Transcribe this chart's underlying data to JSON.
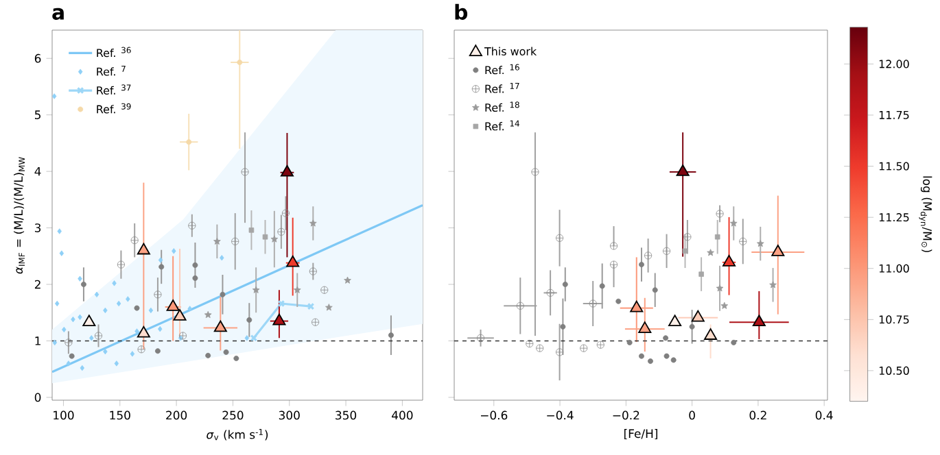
{
  "chart_data": [
    {
      "type": "scatter",
      "title": "a",
      "xlabel": "*σ*$_{v}$ (km s$^{-1}$)",
      "ylabel": "*α*$_{IMF}$ = (M/L)/(M/L)$_{MW}$",
      "xlim": [
        90,
        418
      ],
      "ylim": [
        -0.05,
        6.5
      ],
      "xticks": [
        100,
        150,
        200,
        250,
        300,
        350,
        400
      ],
      "yticks": [
        0,
        1,
        2,
        3,
        4,
        5,
        6
      ],
      "legend": "top left",
      "ref_lines": [
        {
          "axis": "y",
          "value": 1,
          "color": "#333333",
          "line_style": "dashed"
        }
      ],
      "series": [
        {
          "name": "Ref. $^{36}$",
          "type": "line",
          "color": "#7ec8f5",
          "x": [
            90,
            206,
            341,
            418
          ],
          "values": [
            0.45,
            1.49,
            2.71,
            3.4
          ],
          "lower": [
            0.25,
            0.62,
            1.06,
            1.3
          ],
          "upper": [
            1.2,
            3.15,
            6.5,
            6.5
          ]
        },
        {
          "name": "Ref. $^{7}$",
          "marker": "diamond",
          "color": "#8fd0f7",
          "x": [
            96.5,
            98.4,
            94.4,
            114.6,
            108.5,
            124.8,
            137,
            116.6,
            147,
            104.5,
            100.5,
            149,
            165,
            161,
            185.5,
            197.7,
            186,
            203.7,
            129.5,
            114.6,
            145,
            92.3,
            137,
            177.4,
            157,
            211.9,
            240.2,
            262.4,
            91.9
          ],
          "values": [
            2.94,
            2.55,
            1.66,
            2.1,
            1.38,
            1.05,
            0.81,
            0.52,
            0.6,
            0.6,
            1.2,
            1.66,
            1.17,
            0.77,
            1.21,
            2.59,
            2.43,
            1.05,
            1.82,
            1.42,
            2.02,
            0.97,
            1.54,
            1.54,
            1.74,
            1.57,
            2.47,
            1.05,
            5.33
          ]
        },
        {
          "name": "Ref. $^{37}$",
          "type": "line",
          "marker": "cross",
          "color": "#9dd7f7",
          "x": [
            268.5,
            292.8,
            319
          ],
          "values": [
            1.05,
            1.66,
            1.61
          ]
        },
        {
          "name": "Ref. $^{39}$",
          "marker": "circle",
          "color": "#f5d9a8",
          "x": [
            211,
            256
          ],
          "values": [
            4.52,
            5.93
          ],
          "errors": [
            0.5,
            [
              4.4,
              6.5
            ]
          ],
          "xerrors": [
            8,
            8
          ]
        },
        {
          "marker": "circle",
          "color": "#7f7f7f",
          "x": [
            117.9,
            107.4,
            186.7,
            216.6,
            216.6,
            240.9,
            228,
            253,
            244,
            264.5,
            390,
            165,
            183.5
          ],
          "values": [
            2.0,
            0.73,
            2.31,
            2.34,
            2.11,
            1.82,
            0.74,
            0.69,
            0.8,
            1.37,
            1.1,
            1.58,
            0.82
          ],
          "errors": [
            0.3,
            null,
            0.3,
            0.4,
            null,
            0.35,
            null,
            null,
            null,
            0.3,
            0.35,
            null,
            null
          ]
        },
        {
          "marker": "cross",
          "color": "#8a8a8a",
          "x": [
            163,
            151,
            213.8,
            252,
            292.8,
            321,
            331,
            323,
            104.5,
            183.5,
            205.7,
            169,
            131,
            296.8,
            260.7
          ],
          "values": [
            2.78,
            2.35,
            3.04,
            2.76,
            2.93,
            2.23,
            1.9,
            1.33,
            0.97,
            1.82,
            1.09,
            0.85,
            1.09,
            3.26,
            3.99
          ],
          "errors": [
            0.3,
            0.25,
            0.2,
            0.5,
            0.3,
            0.15,
            null,
            null,
            0.2,
            0.3,
            null,
            null,
            0.2,
            0.3,
            [
              3.09,
              4.69
            ]
          ]
        },
        {
          "marker": "star",
          "color": "#9a9a9a",
          "x": [
            321,
            351.5,
            335,
            270.5,
            307,
            236,
            286.7,
            228
          ],
          "values": [
            3.08,
            2.07,
            1.59,
            1.9,
            1.9,
            2.76,
            2.8,
            1.46
          ],
          "errors": [
            0.3,
            null,
            null,
            0.4,
            0.3,
            0.3,
            0.5,
            null
          ]
        },
        {
          "marker": "square",
          "color": "#a6a6a6",
          "x": [
            278.6,
            266.4
          ],
          "values": [
            2.84,
            2.96
          ],
          "errors": [
            0.3,
            0.35
          ]
        },
        {
          "marker": "triangle",
          "color": "#000000",
          "x": [
            122.7,
            171,
            171,
            197,
            203,
            239,
            291,
            303,
            298
          ],
          "values": [
            1.33,
            2.6,
            1.13,
            1.6,
            1.43,
            1.23,
            1.35,
            2.38,
            3.98
          ],
          "colors": [
            "#fff0e9",
            "#fca284",
            "#feddce",
            "#fc9879",
            "#fdccb8",
            "#fca284",
            "#ad1117",
            "#ee3a2b",
            "#7d0510"
          ],
          "errors": [
            null,
            [
              0.85,
              3.8
            ],
            null,
            [
              1.0,
              2.5
            ],
            [
              1.03,
              2.63
            ],
            [
              0.83,
              1.78
            ],
            [
              1.05,
              1.9
            ],
            [
              1.8,
              3.18
            ],
            [
              2.48,
              4.68
            ]
          ],
          "xerrors": [
            null,
            null,
            null,
            7,
            null,
            15,
            8,
            6,
            6
          ]
        }
      ]
    },
    {
      "type": "scatter",
      "title": "b",
      "xlabel": "[Fe/H]",
      "xlim": [
        -0.72,
        0.41
      ],
      "ylim": [
        -0.05,
        6.5
      ],
      "xticks": [
        {
          "value": -0.6,
          "label": "−0.6"
        },
        {
          "value": -0.4,
          "label": "−0.4"
        },
        {
          "value": -0.2,
          "label": "−0.2"
        },
        0,
        0.2,
        0.4
      ],
      "yticks": [
        0,
        1,
        2,
        3,
        4,
        5,
        6
      ],
      "tick_labels": "x",
      "legend": "top left",
      "clim": [
        10.35,
        12.18
      ],
      "clabel": "log (M$_{dyn}$/M$_{⊙}$)",
      "cticks": [
        {
          "value": 10.5,
          "label": "10.50"
        },
        {
          "value": 10.75,
          "label": "10.75"
        },
        {
          "value": 11.0,
          "label": "11.00"
        },
        {
          "value": 11.25,
          "label": "11.25"
        },
        {
          "value": 11.5,
          "label": "11.50"
        },
        {
          "value": 11.75,
          "label": "11.75"
        },
        {
          "value": 12.0,
          "label": "12.00"
        }
      ],
      "ref_lines": [
        {
          "axis": "y",
          "value": 1,
          "color": "#333333",
          "line_style": "dashed"
        }
      ],
      "series": [
        {
          "name": "This work",
          "marker": "triangle",
          "color": "#000000",
          "x": [
            -0.052,
            0.26,
            0.056,
            -0.168,
            0.018,
            -0.143,
            0.203,
            0.112,
            -0.028
          ],
          "values": [
            1.33,
            2.57,
            1.09,
            1.58,
            1.41,
            1.21,
            1.33,
            2.39,
            3.99
          ],
          "cvalues": [
            10.4,
            10.95,
            10.6,
            11.0,
            10.7,
            10.95,
            11.9,
            11.5,
            12.1
          ],
          "errors": [
            null,
            [
              1.47,
              3.57
            ],
            [
              0.69,
              1.29
            ],
            [
              0.98,
              2.48
            ],
            null,
            [
              0.81,
              1.76
            ],
            [
              1.03,
              1.88
            ],
            [
              1.81,
              3.19
            ],
            [
              2.49,
              4.69
            ]
          ],
          "xerrors": [
            null,
            0.08,
            null,
            0.05,
            0.06,
            0.06,
            0.09,
            0.02,
            0.04
          ]
        },
        {
          "name": "Ref. $^{16}$",
          "marker": "circle",
          "color": "#7f7f7f",
          "x": [
            -0.384,
            -0.391,
            -0.272,
            -0.223,
            -0.153,
            -0.112,
            -0.153,
            -0.126,
            -0.077,
            -0.056,
            -0.189,
            0.126,
            0.0,
            -0.08
          ],
          "values": [
            2.0,
            1.25,
            1.97,
            1.7,
            2.35,
            1.9,
            0.73,
            0.64,
            0.73,
            0.66,
            0.97,
            0.97,
            1.25,
            1.05
          ],
          "errors": [
            0.3,
            0.5,
            0.4,
            null,
            0.3,
            0.3,
            null,
            null,
            null,
            null,
            null,
            null,
            0.3,
            null
          ]
        },
        {
          "name": "Ref. $^{17}$",
          "marker": "cross",
          "color": "#8a8a8a",
          "x": [
            -0.475,
            -0.401,
            -0.237,
            -0.237,
            -0.52,
            -0.429,
            -0.3,
            -0.64,
            -0.492,
            -0.461,
            -0.401,
            -0.328,
            -0.277,
            -0.077,
            0.084,
            0.154,
            -0.014,
            -0.133
          ],
          "values": [
            3.99,
            2.82,
            2.68,
            2.35,
            1.62,
            1.85,
            1.66,
            1.05,
            0.95,
            0.87,
            0.8,
            0.87,
            0.93,
            2.59,
            3.25,
            2.76,
            2.84,
            2.51
          ],
          "errors": [
            [
              1.09,
              4.69
            ],
            0.5,
            [
              2.68,
              3.03
            ],
            [
              1.95,
              2.35
            ],
            0.5,
            0.4,
            0.4,
            0.15,
            null,
            null,
            0.5,
            null,
            null,
            0.3,
            0.15,
            0.4,
            0.3,
            0.3
          ],
          "xerrors": [
            null,
            null,
            null,
            null,
            0.05,
            0.02,
            0.03,
            0.04,
            null,
            null,
            null,
            null,
            null,
            null,
            null,
            null,
            null,
            null
          ]
        },
        {
          "name": "Ref. $^{18}$",
          "marker": "star",
          "color": "#9a9a9a",
          "x": [
            0.126,
            0.207,
            0.245,
            0.056,
            0.084,
            0.098
          ],
          "values": [
            3.08,
            2.72,
            1.99,
            2.56,
            1.93,
            1.62
          ],
          "errors": [
            0.3,
            0.3,
            0.3,
            null,
            0.4,
            null
          ]
        },
        {
          "name": "Ref. $^{14}$",
          "marker": "square",
          "color": "#a6a6a6",
          "x": [
            0.077,
            -0.021,
            0.028
          ],
          "values": [
            2.84,
            2.59,
            2.18
          ],
          "errors": [
            0.3,
            0.3,
            0.3
          ]
        }
      ]
    }
  ]
}
